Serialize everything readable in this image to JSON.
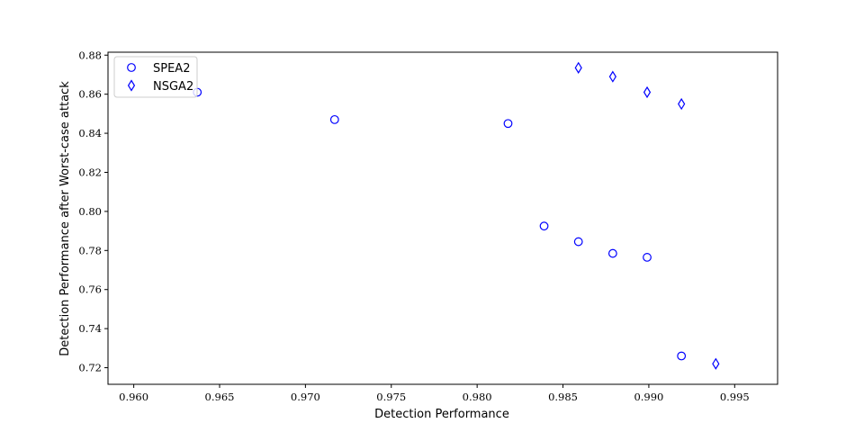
{
  "chart_data": {
    "type": "scatter",
    "title": "",
    "xlabel": "Detection Performance",
    "ylabel": "Detection Performance after Worst-case attack",
    "xlim": [
      0.9585,
      0.9975
    ],
    "ylim": [
      0.7115,
      0.8815
    ],
    "xticks": [
      "0.960",
      "0.965",
      "0.970",
      "0.975",
      "0.980",
      "0.985",
      "0.990",
      "0.995"
    ],
    "yticks": [
      "0.72",
      "0.74",
      "0.76",
      "0.78",
      "0.80",
      "0.82",
      "0.84",
      "0.86",
      "0.88"
    ],
    "grid": false,
    "legend_position": "top-left",
    "series": [
      {
        "name": "SPEA2",
        "marker": "circle",
        "color": "#0000ff",
        "points": [
          {
            "x": 0.9637,
            "y": 0.861
          },
          {
            "x": 0.9717,
            "y": 0.847
          },
          {
            "x": 0.9818,
            "y": 0.845
          },
          {
            "x": 0.9839,
            "y": 0.7925
          },
          {
            "x": 0.9859,
            "y": 0.7845
          },
          {
            "x": 0.9879,
            "y": 0.7785
          },
          {
            "x": 0.9899,
            "y": 0.7765
          },
          {
            "x": 0.9919,
            "y": 0.726
          }
        ]
      },
      {
        "name": "NSGA2",
        "marker": "diamond",
        "color": "#0000ff",
        "points": [
          {
            "x": 0.9859,
            "y": 0.8735
          },
          {
            "x": 0.9879,
            "y": 0.869
          },
          {
            "x": 0.9899,
            "y": 0.861
          },
          {
            "x": 0.9919,
            "y": 0.855
          },
          {
            "x": 0.9939,
            "y": 0.722
          }
        ]
      }
    ]
  }
}
